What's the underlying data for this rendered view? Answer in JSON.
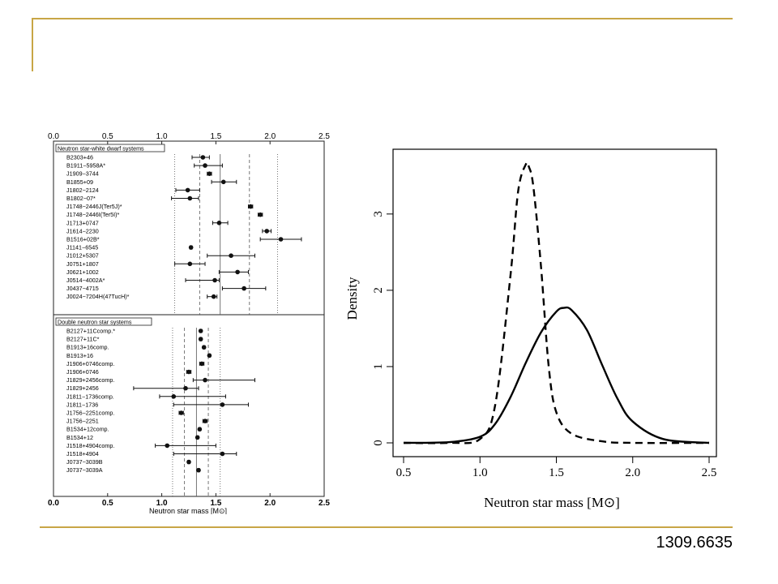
{
  "slide": {
    "id_label": "1309.6635"
  },
  "chart_data": [
    {
      "type": "scatter",
      "xlabel": "Neutron star mass [M⊙]",
      "xlim": [
        0.0,
        2.5
      ],
      "xticks": [
        "0.0",
        "0.5",
        "1.0",
        "1.5",
        "2.0",
        "2.5"
      ],
      "panels": [
        {
          "name": "Neutron star-white dwarf systems",
          "points": [
            {
              "label": "B2303+46",
              "mass": 1.38,
              "err_low": 0.1,
              "err_high": 0.06
            },
            {
              "label": "B1911−5958A*",
              "mass": 1.4,
              "err_low": 0.1,
              "err_high": 0.16
            },
            {
              "label": "J1909−3744",
              "mass": 1.44,
              "err_low": 0.02,
              "err_high": 0.02
            },
            {
              "label": "B1855+09",
              "mass": 1.57,
              "err_low": 0.11,
              "err_high": 0.12
            },
            {
              "label": "J1802−2124",
              "mass": 1.24,
              "err_low": 0.11,
              "err_high": 0.11
            },
            {
              "label": "B1802−07*",
              "mass": 1.26,
              "err_low": 0.17,
              "err_high": 0.08
            },
            {
              "label": "J1748−2446J(Ter5J)*",
              "mass": 1.82,
              "err_low": 0.02,
              "err_high": 0.02
            },
            {
              "label": "J1748−2446I(Ter5I)*",
              "mass": 1.91,
              "err_low": 0.02,
              "err_high": 0.02
            },
            {
              "label": "J1713+0747",
              "mass": 1.53,
              "err_low": 0.06,
              "err_high": 0.08
            },
            {
              "label": "J1614−2230",
              "mass": 1.97,
              "err_low": 0.04,
              "err_high": 0.04
            },
            {
              "label": "B1516+02B*",
              "mass": 2.1,
              "err_low": 0.19,
              "err_high": 0.19
            },
            {
              "label": "J1141−6545",
              "mass": 1.27,
              "err_low": 0.01,
              "err_high": 0.01
            },
            {
              "label": "J1012+5307",
              "mass": 1.64,
              "err_low": 0.22,
              "err_high": 0.22
            },
            {
              "label": "J0751+1807",
              "mass": 1.26,
              "err_low": 0.14,
              "err_high": 0.14
            },
            {
              "label": "J0621+1002",
              "mass": 1.7,
              "err_low": 0.17,
              "err_high": 0.1
            },
            {
              "label": "J0514−4002A*",
              "mass": 1.49,
              "err_low": 0.27,
              "err_high": 0.04
            },
            {
              "label": "J0437−4715",
              "mass": 1.76,
              "err_low": 0.2,
              "err_high": 0.2
            },
            {
              "label": "J0024−7204H(47TucH)*",
              "mass": 1.48,
              "err_low": 0.06,
              "err_high": 0.03
            }
          ]
        },
        {
          "name": "Double neutron star systems",
          "points": [
            {
              "label": "B2127+11Ccomp.*",
              "mass": 1.36,
              "err_low": 0.01,
              "err_high": 0.01
            },
            {
              "label": "B2127+11C*",
              "mass": 1.36,
              "err_low": 0.01,
              "err_high": 0.01
            },
            {
              "label": "B1913+16comp.",
              "mass": 1.39,
              "err_low": 0.01,
              "err_high": 0.01
            },
            {
              "label": "B1913+16",
              "mass": 1.44,
              "err_low": 0.01,
              "err_high": 0.01
            },
            {
              "label": "J1906+0746comp.",
              "mass": 1.37,
              "err_low": 0.02,
              "err_high": 0.02
            },
            {
              "label": "J1906+0746",
              "mass": 1.25,
              "err_low": 0.02,
              "err_high": 0.02
            },
            {
              "label": "J1829+2456comp.",
              "mass": 1.4,
              "err_low": 0.11,
              "err_high": 0.46
            },
            {
              "label": "J1829+2456",
              "mass": 1.22,
              "err_low": 0.48,
              "err_high": 0.12
            },
            {
              "label": "J1811−1736comp.",
              "mass": 1.11,
              "err_low": 0.13,
              "err_high": 0.48
            },
            {
              "label": "J1811−1736",
              "mass": 1.56,
              "err_low": 0.45,
              "err_high": 0.24
            },
            {
              "label": "J1756−2251comp.",
              "mass": 1.18,
              "err_low": 0.02,
              "err_high": 0.02
            },
            {
              "label": "J1756−2251",
              "mass": 1.4,
              "err_low": 0.02,
              "err_high": 0.02
            },
            {
              "label": "B1534+12comp.",
              "mass": 1.35,
              "err_low": 0.01,
              "err_high": 0.01
            },
            {
              "label": "B1534+12",
              "mass": 1.33,
              "err_low": 0.01,
              "err_high": 0.01
            },
            {
              "label": "J1518+4904comp.",
              "mass": 1.05,
              "err_low": 0.11,
              "err_high": 0.45
            },
            {
              "label": "J1518+4904",
              "mass": 1.56,
              "err_low": 0.45,
              "err_high": 0.13
            },
            {
              "label": "J0737−3039B",
              "mass": 1.25,
              "err_low": 0.01,
              "err_high": 0.01
            },
            {
              "label": "J0737−3039A",
              "mass": 1.34,
              "err_low": 0.01,
              "err_high": 0.01
            }
          ]
        }
      ],
      "reference_lines": [
        {
          "panel": "Neutron star-white dwarf systems",
          "x": 1.54,
          "style": "solid"
        },
        {
          "panel": "Neutron star-white dwarf systems",
          "x": 1.35,
          "style": "dashed"
        },
        {
          "panel": "Neutron star-white dwarf systems",
          "x": 1.81,
          "style": "dashed"
        },
        {
          "panel": "Neutron star-white dwarf systems",
          "x": 1.12,
          "style": "dotted"
        },
        {
          "panel": "Neutron star-white dwarf systems",
          "x": 2.07,
          "style": "dotted"
        },
        {
          "panel": "Double neutron star systems",
          "x": 1.32,
          "style": "solid"
        },
        {
          "panel": "Double neutron star systems",
          "x": 1.21,
          "style": "dashed"
        },
        {
          "panel": "Double neutron star systems",
          "x": 1.43,
          "style": "dashed"
        },
        {
          "panel": "Double neutron star systems",
          "x": 1.1,
          "style": "dotted"
        },
        {
          "panel": "Double neutron star systems",
          "x": 1.54,
          "style": "dotted"
        }
      ]
    },
    {
      "type": "line",
      "xlabel": "Neutron star mass [M⊙]",
      "ylabel": "Density",
      "xlim": [
        0.5,
        2.5
      ],
      "ylim": [
        0,
        3.7
      ],
      "xticks": [
        "0.5",
        "1.0",
        "1.5",
        "2.0",
        "2.5"
      ],
      "yticks": [
        "0",
        "1",
        "2",
        "3"
      ],
      "series": [
        {
          "style": "dashed",
          "x": [
            0.5,
            0.8,
            1.0,
            1.1,
            1.2,
            1.25,
            1.3,
            1.32,
            1.35,
            1.4,
            1.45,
            1.5,
            1.6,
            1.8,
            2.0,
            2.5
          ],
          "y": [
            0.0,
            0.0,
            0.05,
            0.5,
            2.2,
            3.3,
            3.65,
            3.62,
            3.35,
            2.3,
            1.0,
            0.4,
            0.12,
            0.02,
            0.0,
            0.0
          ]
        },
        {
          "style": "solid",
          "x": [
            0.5,
            0.8,
            1.0,
            1.1,
            1.2,
            1.3,
            1.4,
            1.5,
            1.55,
            1.6,
            1.7,
            1.8,
            1.9,
            2.0,
            2.2,
            2.5
          ],
          "y": [
            0.0,
            0.01,
            0.08,
            0.25,
            0.6,
            1.05,
            1.45,
            1.72,
            1.77,
            1.74,
            1.48,
            1.02,
            0.58,
            0.28,
            0.05,
            0.0
          ]
        }
      ]
    }
  ]
}
